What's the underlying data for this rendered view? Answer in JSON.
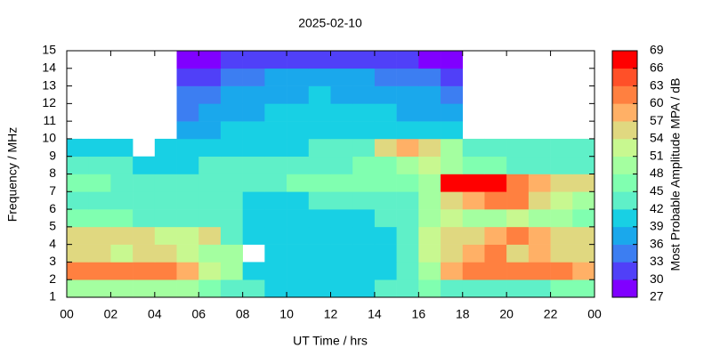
{
  "chart_data": {
    "type": "heatmap",
    "title": "2025-02-10",
    "x_label": "UT Time / hrs",
    "y_label": "Frequency / MHz",
    "colorbar_label": "Most Probable Amplitude MPA / dB",
    "xlim": [
      0,
      24
    ],
    "xticks": [
      {
        "value": 0,
        "label": "00"
      },
      {
        "value": 2,
        "label": "02"
      },
      {
        "value": 4,
        "label": "04"
      },
      {
        "value": 6,
        "label": "06"
      },
      {
        "value": 8,
        "label": "08"
      },
      10,
      12,
      14,
      16,
      18,
      20,
      22,
      {
        "value": 24,
        "label": "00"
      }
    ],
    "ylim": [
      1,
      15
    ],
    "yticks": [
      1,
      2,
      3,
      4,
      5,
      6,
      7,
      8,
      9,
      10,
      11,
      12,
      13,
      14,
      15
    ],
    "clim": [
      27,
      69
    ],
    "cticks": [
      27,
      30,
      33,
      36,
      39,
      42,
      45,
      48,
      51,
      54,
      57,
      60,
      63,
      66,
      69
    ],
    "colors": [
      "#8000ff",
      "#5040f8",
      "#3c7ef2",
      "#1aa8ec",
      "#18d0e4",
      "#5ff0c8",
      "#80ffb0",
      "#a4ffa0",
      "#c8f890",
      "#e0d880",
      "#ffb066",
      "#ff8040",
      "#ff5028",
      "#ff0000"
    ],
    "xbins": [
      0,
      1,
      2,
      3,
      4,
      5,
      6,
      7,
      8,
      9,
      10,
      11,
      12,
      13,
      14,
      15,
      16,
      17,
      18,
      19,
      20,
      21,
      22,
      23,
      24
    ],
    "ybins": [
      1,
      2,
      3,
      4,
      5,
      6,
      7,
      8,
      9,
      10,
      11,
      12,
      13,
      14,
      15
    ],
    "z": [
      [
        50,
        50,
        50,
        48,
        48,
        48,
        46,
        44,
        42,
        41,
        41,
        40,
        41,
        41,
        42,
        42,
        46,
        42,
        42,
        44,
        44,
        44,
        46,
        46
      ],
      [
        62,
        62,
        60,
        60,
        60,
        58,
        52,
        50,
        41,
        40,
        40,
        40,
        40,
        40,
        41,
        42,
        50,
        58,
        62,
        62,
        62,
        60,
        60,
        58
      ],
      [
        55,
        56,
        52,
        54,
        54,
        52,
        50,
        48,
        null,
        40,
        40,
        40,
        40,
        40,
        41,
        42,
        52,
        54,
        58,
        62,
        56,
        58,
        54,
        54
      ],
      [
        56,
        55,
        54,
        54,
        52,
        52,
        56,
        44,
        41,
        41,
        41,
        40,
        40,
        41,
        41,
        42,
        52,
        56,
        56,
        58,
        60,
        58,
        56,
        56
      ],
      [
        46,
        46,
        45,
        44,
        44,
        44,
        43,
        42,
        41,
        41,
        41,
        41,
        41,
        41,
        42,
        42,
        48,
        52,
        50,
        50,
        52,
        48,
        48,
        46
      ],
      [
        44,
        44,
        43,
        43,
        42,
        42,
        42,
        42,
        41,
        41,
        41,
        42,
        42,
        42,
        43,
        43,
        50,
        56,
        58,
        62,
        60,
        55,
        52,
        48
      ],
      [
        47,
        45,
        44,
        43,
        43,
        43,
        43,
        44,
        44,
        44,
        45,
        45,
        45,
        45,
        45,
        46,
        50,
        66,
        66,
        66,
        60,
        58,
        56,
        54
      ],
      [
        42,
        42,
        42,
        41,
        41,
        41,
        42,
        42,
        42,
        43,
        43,
        43,
        44,
        45,
        46,
        48,
        52,
        50,
        46,
        45,
        44,
        44,
        44,
        43
      ],
      [
        40,
        40,
        39,
        null,
        40,
        40,
        40,
        40,
        41,
        41,
        41,
        42,
        42,
        42,
        56,
        58,
        56,
        48,
        44,
        44,
        42,
        42,
        42,
        42
      ],
      [
        null,
        null,
        null,
        null,
        null,
        36,
        37,
        39,
        40,
        40,
        40,
        41,
        41,
        40,
        40,
        40,
        39,
        39,
        null,
        null,
        null,
        null,
        null,
        null
      ],
      [
        null,
        null,
        null,
        null,
        null,
        35,
        36,
        38,
        38,
        39,
        40,
        40,
        40,
        39,
        39,
        38,
        38,
        38,
        null,
        null,
        null,
        null,
        null,
        null
      ],
      [
        null,
        null,
        null,
        null,
        null,
        33,
        34,
        36,
        37,
        38,
        38,
        39,
        38,
        38,
        37,
        37,
        36,
        35,
        null,
        null,
        null,
        null,
        null,
        null
      ],
      [
        null,
        null,
        null,
        null,
        null,
        30,
        31,
        33,
        34,
        36,
        37,
        37,
        36,
        36,
        35,
        34,
        33,
        31,
        null,
        null,
        null,
        null,
        null,
        null
      ],
      [
        null,
        null,
        null,
        null,
        null,
        29,
        29,
        30,
        30,
        30,
        31,
        31,
        30,
        30,
        30,
        30,
        29,
        29,
        null,
        null,
        null,
        null,
        null,
        null
      ]
    ]
  }
}
